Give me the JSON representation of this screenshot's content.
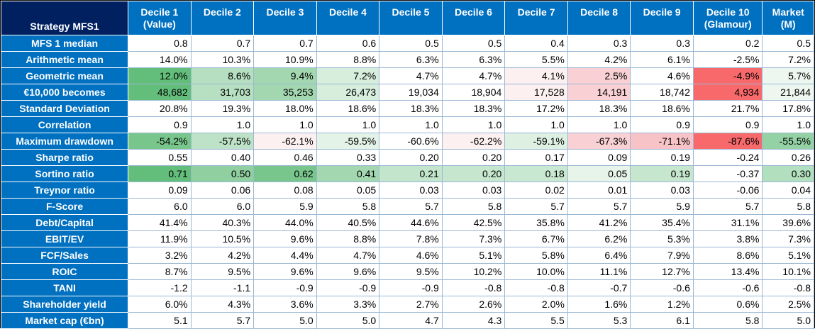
{
  "corner_label": "Strategy MFS1",
  "columns": [
    {
      "line1": "Decile 1",
      "line2": "(Value)"
    },
    {
      "line1": "Decile 2",
      "line2": ""
    },
    {
      "line1": "Decile 3",
      "line2": ""
    },
    {
      "line1": "Decile 4",
      "line2": ""
    },
    {
      "line1": "Decile 5",
      "line2": ""
    },
    {
      "line1": "Decile 6",
      "line2": ""
    },
    {
      "line1": "Decile 7",
      "line2": ""
    },
    {
      "line1": "Decile 8",
      "line2": ""
    },
    {
      "line1": "Decile 9",
      "line2": ""
    },
    {
      "line1": "Decile 10",
      "line2": "(Glamour)"
    },
    {
      "line1": "Market",
      "line2": "(M)"
    }
  ],
  "rows": [
    {
      "label": "MFS 1 median",
      "values": [
        "0.8",
        "0.7",
        "0.7",
        "0.6",
        "0.5",
        "0.5",
        "0.4",
        "0.3",
        "0.3",
        "0.2",
        "0.5"
      ],
      "colors": []
    },
    {
      "label": "Arithmetic mean",
      "values": [
        "14.0%",
        "10.3%",
        "10.9%",
        "8.8%",
        "6.3%",
        "6.3%",
        "5.5%",
        "4.2%",
        "6.1%",
        "-2.5%",
        "7.2%"
      ],
      "colors": []
    },
    {
      "label": "Geometric mean",
      "values": [
        "12.0%",
        "8.6%",
        "9.4%",
        "7.2%",
        "4.7%",
        "4.7%",
        "4.1%",
        "2.5%",
        "4.6%",
        "-4.9%",
        "5.7%"
      ],
      "colors": [
        "#63be7b",
        "#b5dfc0",
        "#a2d7b0",
        "#d7eedd",
        "#ffffff",
        "#ffffff",
        "#fdf0f1",
        "#f9d1d4",
        "#ffffff",
        "#f8696b",
        "#edf7ef"
      ]
    },
    {
      "label": "€10,000 becomes",
      "values": [
        "48,682",
        "31,703",
        "35,253",
        "26,473",
        "19,034",
        "18,904",
        "17,528",
        "14,191",
        "18,742",
        "4,934",
        "21,844"
      ],
      "colors": [
        "#63be7b",
        "#b6e0c1",
        "#a2d7b0",
        "#d7eedd",
        "#ffffff",
        "#ffffff",
        "#fdf0f1",
        "#f9d1d4",
        "#ffffff",
        "#f8696b",
        "#edf7ef"
      ]
    },
    {
      "label": "Standard Deviation",
      "values": [
        "20.8%",
        "19.3%",
        "18.0%",
        "18.6%",
        "18.3%",
        "18.3%",
        "17.2%",
        "18.3%",
        "18.6%",
        "21.7%",
        "17.8%"
      ],
      "colors": []
    },
    {
      "label": "Correlation",
      "values": [
        "0.9",
        "1.0",
        "1.0",
        "1.0",
        "1.0",
        "1.0",
        "1.0",
        "1.0",
        "0.9",
        "0.9",
        "1.0"
      ],
      "colors": []
    },
    {
      "label": "Maximum drawdown",
      "values": [
        "-54.2%",
        "-57.5%",
        "-62.1%",
        "-59.5%",
        "-60.6%",
        "-62.2%",
        "-59.1%",
        "-67.3%",
        "-71.1%",
        "-87.6%",
        "-55.5%"
      ],
      "colors": [
        "#79c68d",
        "#bde2c7",
        "#fdf0f1",
        "#e3f3e7",
        "#ffffff",
        "#fdf0f1",
        "#ddf0e2",
        "#f9d1d4",
        "#f7c3c6",
        "#f8696b",
        "#94d1a4"
      ]
    },
    {
      "label": "Sharpe ratio",
      "values": [
        "0.55",
        "0.40",
        "0.46",
        "0.33",
        "0.20",
        "0.20",
        "0.17",
        "0.09",
        "0.19",
        "-0.24",
        "0.26"
      ],
      "colors": []
    },
    {
      "label": "Sortino ratio",
      "values": [
        "0.71",
        "0.50",
        "0.62",
        "0.41",
        "0.21",
        "0.20",
        "0.18",
        "0.05",
        "0.19",
        "-0.37",
        "0.30"
      ],
      "colors": [
        "#63be7b",
        "#8fcfa0",
        "#79c68d",
        "#a2d7b0",
        "#c3e5cc",
        "#c6e6ce",
        "#c9e8d1",
        "#e7f4ea",
        "#c6e6ce",
        "#ffffff",
        "#b2dfbe"
      ]
    },
    {
      "label": "Treynor ratio",
      "values": [
        "0.09",
        "0.06",
        "0.08",
        "0.05",
        "0.03",
        "0.03",
        "0.02",
        "0.01",
        "0.03",
        "-0.06",
        "0.04"
      ],
      "colors": []
    },
    {
      "label": "F-Score",
      "values": [
        "6.0",
        "6.0",
        "5.9",
        "5.8",
        "5.7",
        "5.8",
        "5.7",
        "5.7",
        "5.9",
        "5.7",
        "5.8"
      ],
      "colors": []
    },
    {
      "label": "Debt/Capital",
      "values": [
        "41.4%",
        "40.3%",
        "44.0%",
        "40.5%",
        "44.6%",
        "42.5%",
        "35.8%",
        "41.2%",
        "35.4%",
        "31.1%",
        "39.6%"
      ],
      "colors": []
    },
    {
      "label": "EBIT/EV",
      "values": [
        "11.9%",
        "10.5%",
        "9.6%",
        "8.8%",
        "7.8%",
        "7.3%",
        "6.7%",
        "6.2%",
        "5.3%",
        "3.8%",
        "7.3%"
      ],
      "colors": []
    },
    {
      "label": "FCF/Sales",
      "values": [
        "3.2%",
        "4.2%",
        "4.4%",
        "4.7%",
        "4.6%",
        "5.1%",
        "5.8%",
        "6.4%",
        "7.9%",
        "8.6%",
        "5.1%"
      ],
      "colors": []
    },
    {
      "label": "ROIC",
      "values": [
        "8.7%",
        "9.5%",
        "9.6%",
        "9.6%",
        "9.5%",
        "10.2%",
        "10.0%",
        "11.1%",
        "12.7%",
        "13.4%",
        "10.1%"
      ],
      "colors": []
    },
    {
      "label": "TANI",
      "values": [
        "-1.2",
        "-1.1",
        "-0.9",
        "-0.9",
        "-0.9",
        "-0.8",
        "-0.8",
        "-0.7",
        "-0.6",
        "-0.6",
        "-0.8"
      ],
      "colors": []
    },
    {
      "label": "Shareholder yield",
      "values": [
        "6.0%",
        "4.3%",
        "3.6%",
        "3.3%",
        "2.7%",
        "2.6%",
        "2.0%",
        "1.6%",
        "1.2%",
        "0.6%",
        "2.5%"
      ],
      "colors": []
    },
    {
      "label": "Market cap (€bn)",
      "values": [
        "5.1",
        "5.7",
        "5.0",
        "5.0",
        "4.7",
        "4.3",
        "5.5",
        "5.3",
        "6.1",
        "5.8",
        "5.0"
      ],
      "colors": []
    }
  ]
}
